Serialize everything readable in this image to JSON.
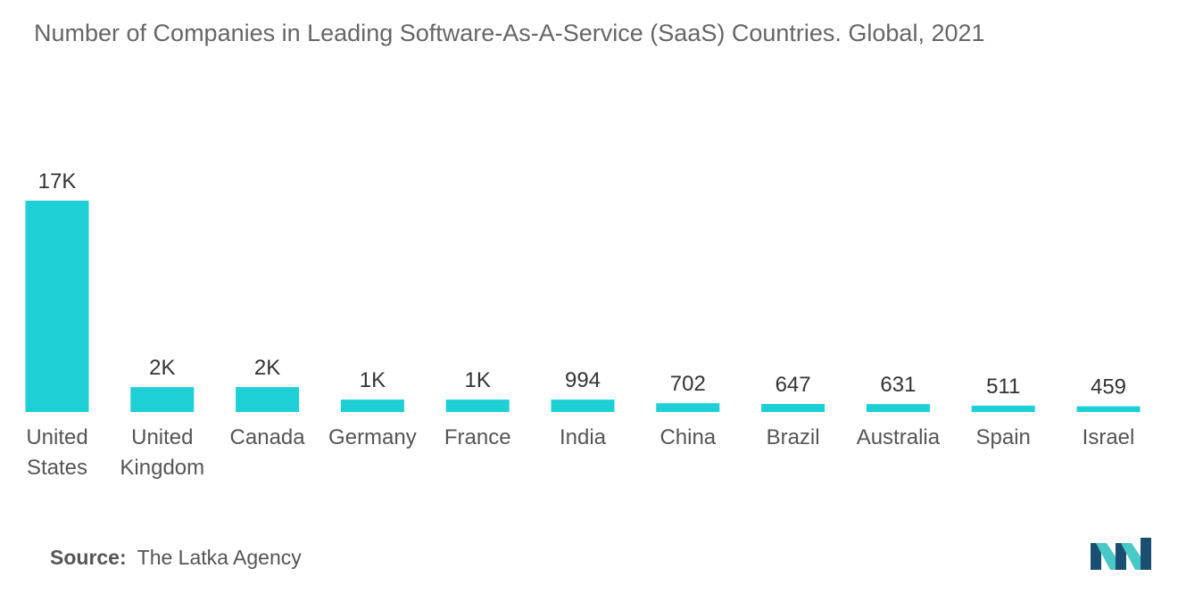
{
  "title": "Number of Companies in Leading Software-As-A-Service (SaaS) Countries. Global, 2021",
  "source": {
    "label": "Source:",
    "text": "The Latka Agency"
  },
  "colors": {
    "bar": "#1ECFD6",
    "logo_dark": "#1B4F72",
    "logo_light": "#48C9C5"
  },
  "logo": {
    "icon": "mordor-intelligence-logo-icon"
  },
  "chart_data": {
    "type": "bar",
    "categories": [
      [
        "United",
        "States"
      ],
      [
        "United",
        "Kingdom"
      ],
      [
        "Canada"
      ],
      [
        "Germany"
      ],
      [
        "France"
      ],
      [
        "India"
      ],
      [
        "China"
      ],
      [
        "Brazil"
      ],
      [
        "Australia"
      ],
      [
        "Spain"
      ],
      [
        "Israel"
      ]
    ],
    "values": [
      17000,
      2000,
      2000,
      1000,
      1000,
      994,
      702,
      647,
      631,
      511,
      459
    ],
    "value_labels": [
      "17K",
      "2K",
      "2K",
      "1K",
      "1K",
      "994",
      "702",
      "647",
      "631",
      "511",
      "459"
    ],
    "title": "Number of Companies in Leading Software-As-A-Service (SaaS) Countries. Global, 2021",
    "xlabel": "",
    "ylabel": "",
    "grid": false,
    "legend": "none"
  }
}
